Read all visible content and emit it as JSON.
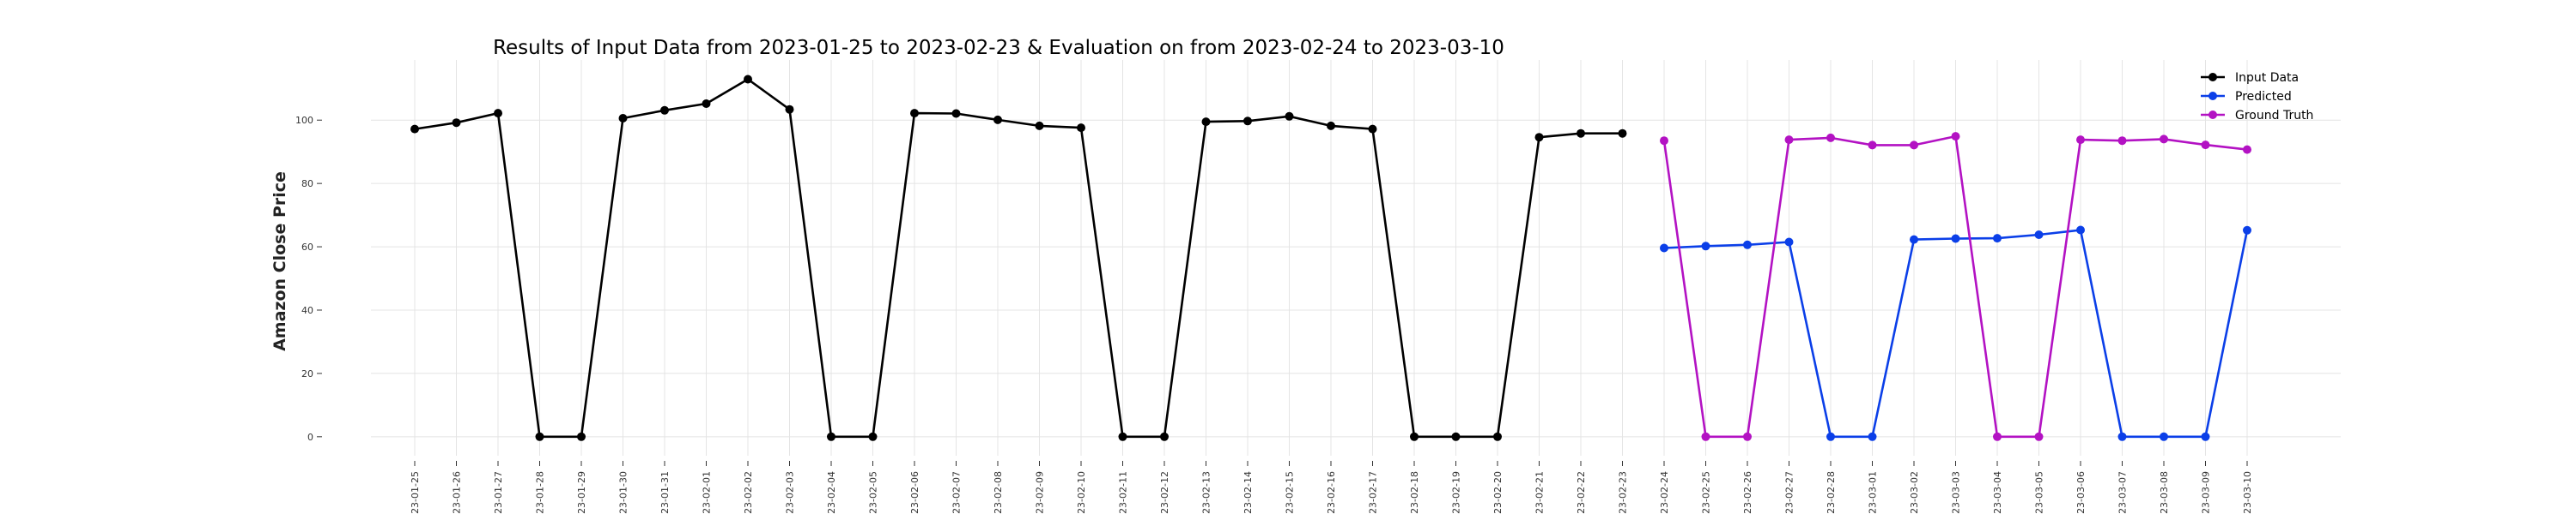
{
  "chart_data": {
    "type": "line",
    "title": "Results of Input Data from 2023-01-25 to 2023-02-23 & Evaluation on from 2023-02-24 to 2023-03-10",
    "xlabel": "",
    "ylabel": "Amazon Close Price",
    "ylim": [
      -6,
      119
    ],
    "yticks": [
      0,
      20,
      40,
      60,
      80,
      100
    ],
    "grid": true,
    "legend_position": "top-right",
    "x": [
      "2023-01-25",
      "2023-01-26",
      "2023-01-27",
      "2023-01-28",
      "2023-01-29",
      "2023-01-30",
      "2023-01-31",
      "2023-02-01",
      "2023-02-02",
      "2023-02-03",
      "2023-02-04",
      "2023-02-05",
      "2023-02-06",
      "2023-02-07",
      "2023-02-08",
      "2023-02-09",
      "2023-02-10",
      "2023-02-11",
      "2023-02-12",
      "2023-02-13",
      "2023-02-14",
      "2023-02-15",
      "2023-02-16",
      "2023-02-17",
      "2023-02-18",
      "2023-02-19",
      "2023-02-20",
      "2023-02-21",
      "2023-02-22",
      "2023-02-23",
      "2023-02-24",
      "2023-02-25",
      "2023-02-26",
      "2023-02-27",
      "2023-02-28",
      "2023-03-01",
      "2023-03-02",
      "2023-03-03",
      "2023-03-04",
      "2023-03-05",
      "2023-03-06",
      "2023-03-07",
      "2023-03-08",
      "2023-03-09",
      "2023-03-10"
    ],
    "xtick_labels": [
      "-23-01-25",
      "-23-01-26",
      "-23-01-27",
      "-23-01-28",
      "-23-01-29",
      "-23-01-30",
      "-23-01-31",
      "-23-02-01",
      "-23-02-02",
      "-23-02-03",
      "-23-02-04",
      "-23-02-05",
      "-23-02-06",
      "-23-02-07",
      "-23-02-08",
      "-23-02-09",
      "-23-02-10",
      "-23-02-11",
      "-23-02-12",
      "-23-02-13",
      "-23-02-14",
      "-23-02-15",
      "-23-02-16",
      "-23-02-17",
      "-23-02-18",
      "-23-02-19",
      "-23-02-20",
      "-23-02-21",
      "-23-02-22",
      "-23-02-23",
      "-23-02-24",
      "-23-02-25",
      "-23-02-26",
      "-23-02-27",
      "-23-02-28",
      "-23-03-01",
      "-23-03-02",
      "-23-03-03",
      "-23-03-04",
      "-23-03-05",
      "-23-03-06",
      "-23-03-07",
      "-23-03-08",
      "-23-03-09",
      "-23-03-10"
    ],
    "series": [
      {
        "name": "Input Data",
        "color": "#000000",
        "x": [
          "2023-01-25",
          "2023-01-26",
          "2023-01-27",
          "2023-01-28",
          "2023-01-29",
          "2023-01-30",
          "2023-01-31",
          "2023-02-01",
          "2023-02-02",
          "2023-02-03",
          "2023-02-04",
          "2023-02-05",
          "2023-02-06",
          "2023-02-07",
          "2023-02-08",
          "2023-02-09",
          "2023-02-10",
          "2023-02-11",
          "2023-02-12",
          "2023-02-13",
          "2023-02-14",
          "2023-02-15",
          "2023-02-16",
          "2023-02-17",
          "2023-02-18",
          "2023-02-19",
          "2023-02-20",
          "2023-02-21",
          "2023-02-22",
          "2023-02-23"
        ],
        "values": [
          97.2,
          99.2,
          102.2,
          0,
          0,
          100.6,
          103.1,
          105.2,
          112.9,
          103.4,
          0,
          0,
          102.2,
          102.1,
          100.1,
          98.2,
          97.6,
          0,
          0,
          99.5,
          99.7,
          101.2,
          98.2,
          97.2,
          0,
          0,
          0,
          94.6,
          95.8,
          95.8
        ]
      },
      {
        "name": "Predicted",
        "color": "#0b3fe8",
        "x": [
          "2023-02-24",
          "2023-02-25",
          "2023-02-26",
          "2023-02-27",
          "2023-02-28",
          "2023-03-01",
          "2023-03-02",
          "2023-03-03",
          "2023-03-04",
          "2023-03-05",
          "2023-03-06",
          "2023-03-07",
          "2023-03-08",
          "2023-03-09",
          "2023-03-10"
        ],
        "values": [
          59.6,
          60.2,
          60.6,
          61.5,
          0,
          0,
          62.3,
          62.6,
          62.7,
          63.8,
          65.3,
          0,
          0,
          0,
          65.2
        ]
      },
      {
        "name": "Ground Truth",
        "color": "#b312c3",
        "x": [
          "2023-02-24",
          "2023-02-25",
          "2023-02-26",
          "2023-02-27",
          "2023-02-28",
          "2023-03-01",
          "2023-03-02",
          "2023-03-03",
          "2023-03-04",
          "2023-03-05",
          "2023-03-06",
          "2023-03-07",
          "2023-03-08",
          "2023-03-09",
          "2023-03-10"
        ],
        "values": [
          93.5,
          0,
          0,
          93.8,
          94.4,
          92.1,
          92.1,
          94.9,
          0,
          0,
          93.8,
          93.5,
          94.0,
          92.2,
          90.7
        ]
      }
    ]
  }
}
